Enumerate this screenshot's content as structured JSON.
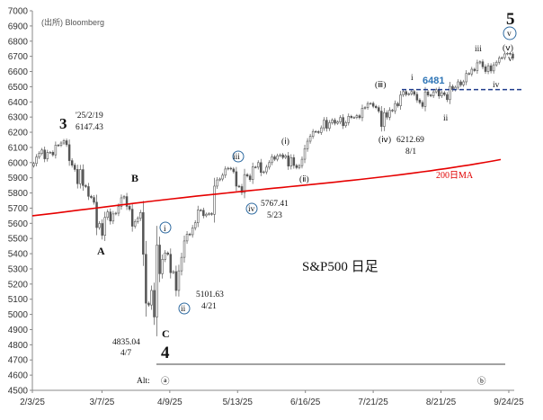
{
  "source_note": "(出所) Bloomberg",
  "chart_data": {
    "type": "candlestick",
    "title": "S&P500 日足",
    "ylim": [
      4500,
      7000
    ],
    "yticks": [
      4500,
      4600,
      4700,
      4800,
      4900,
      5000,
      5100,
      5200,
      5300,
      5400,
      5500,
      5600,
      5700,
      5800,
      5900,
      6000,
      6100,
      6200,
      6300,
      6400,
      6500,
      6600,
      6700,
      6800,
      6900,
      7000
    ],
    "xticks": [
      "2/3/25",
      "3/7/25",
      "4/9/25",
      "5/13/25",
      "6/16/25",
      "7/21/25",
      "8/21/25",
      "9/24/25"
    ],
    "series_closes": [
      5994,
      6037,
      6061,
      6083,
      6025,
      6066,
      6068,
      6051,
      6115,
      6114,
      6129,
      6144,
      6118,
      6013,
      5983,
      5955,
      5861,
      5954,
      5849,
      5842,
      5778,
      5770,
      5739,
      5572,
      5599,
      5521,
      5639,
      5675,
      5615,
      5662,
      5667,
      5712,
      5768,
      5776,
      5712,
      5693,
      5581,
      5611,
      5633,
      5671,
      5396,
      5074,
      5062,
      5158,
      4983,
      5457,
      5268,
      5363,
      5405,
      5396,
      5275,
      5282,
      5158,
      5287,
      5376,
      5484,
      5529,
      5525,
      5570,
      5604,
      5687,
      5686,
      5650,
      5660,
      5664,
      5659,
      5845,
      5886,
      5892,
      5917,
      5958,
      5963,
      5958,
      5940,
      5845,
      5842,
      5803,
      5921,
      5912,
      5888,
      5971,
      5970,
      6000,
      5935,
      5939,
      5970,
      6000,
      6038,
      6022,
      6045,
      6051,
      6034,
      6045,
      5977,
      6033,
      5981,
      5967,
      5980,
      6022,
      6092,
      6141,
      6173,
      6205,
      6204,
      6198,
      6229,
      6279,
      6226,
      6263,
      6280,
      6259,
      6268,
      6297,
      6243,
      6263,
      6305,
      6297,
      6297,
      6309,
      6296,
      6358,
      6363,
      6389,
      6390,
      6371,
      6362,
      6339,
      6238,
      6329,
      6299,
      6345,
      6341,
      6389,
      6374,
      6446,
      6468,
      6449,
      6453,
      6468,
      6450,
      6412,
      6396,
      6370,
      6466,
      6445,
      6440,
      6466,
      6481,
      6439,
      6460,
      6448,
      6415,
      6502,
      6481,
      6496,
      6532,
      6512,
      6532,
      6587,
      6584,
      6615,
      6606,
      6657,
      6664,
      6631,
      6600,
      6638,
      6604,
      6644,
      6661,
      6688,
      6691,
      6716,
      6720,
      6715,
      6688
    ],
    "moving_average": {
      "name": "200日MA",
      "start": 5650,
      "end": 6020
    },
    "levels": [
      {
        "value": 6481,
        "label": "6481"
      }
    ],
    "annotations": [
      {
        "label": "3",
        "note": "'25/2/19",
        "value": "6147.43"
      },
      {
        "label": "4",
        "note": "4/7",
        "value": "4835.04"
      },
      {
        "label": "5"
      },
      {
        "label": "A"
      },
      {
        "label": "B"
      },
      {
        "label": "C"
      },
      {
        "label": "i"
      },
      {
        "label": "ii"
      },
      {
        "label": "iii"
      },
      {
        "label": "iv"
      },
      {
        "label": "v"
      },
      {
        "label": "(ⅰ)"
      },
      {
        "label": "(ⅱ)"
      },
      {
        "label": "(ⅲ)"
      },
      {
        "label": "(ⅳ)"
      },
      {
        "label": "(ⅴ)"
      },
      {
        "label": "5101.63",
        "note": "4/21"
      },
      {
        "label": "5767.41",
        "note": "5/23"
      },
      {
        "label": "6212.69",
        "note": "8/1"
      },
      {
        "label": "Alt:"
      },
      {
        "label": "ⓐ"
      },
      {
        "label": "ⓑ"
      }
    ]
  }
}
